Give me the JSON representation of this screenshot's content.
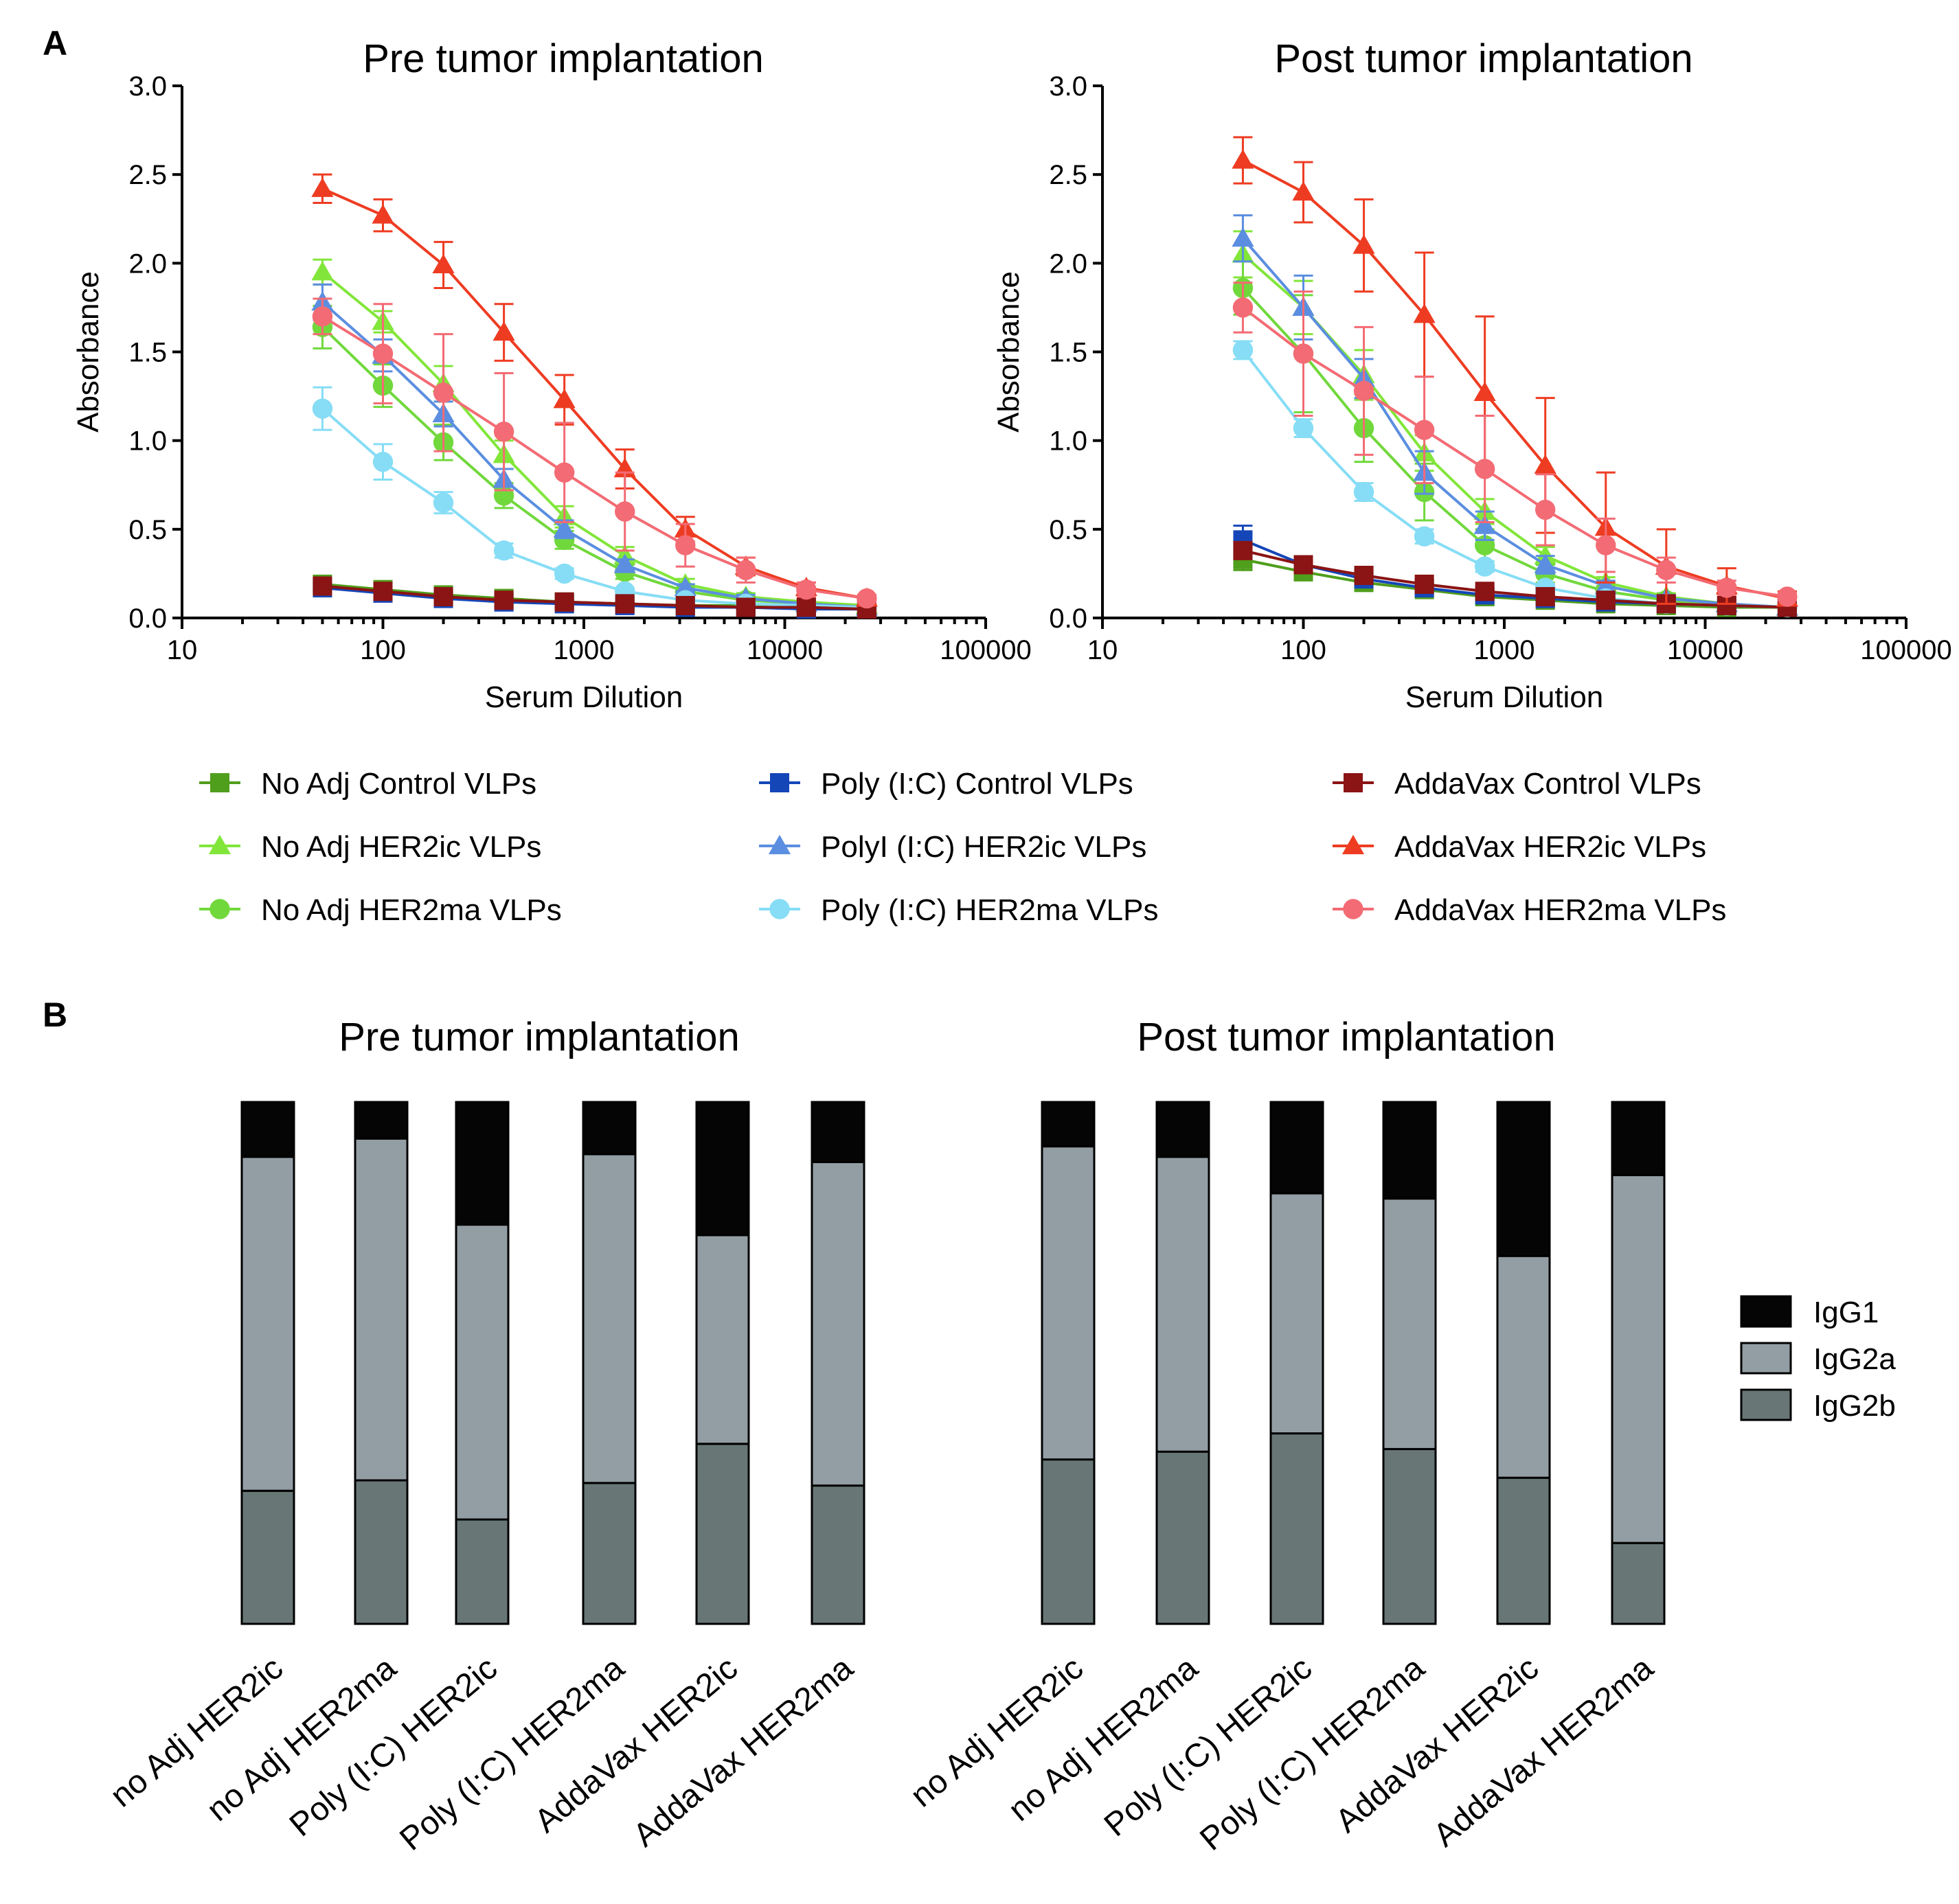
{
  "panel_labels": [
    "A",
    "B"
  ],
  "chart_data": [
    {
      "type": "line",
      "panel": "A",
      "title": "Pre tumor implantation",
      "xlabel": "Serum Dilution",
      "ylabel": "Absorbance",
      "xscale": "log",
      "xlim": [
        10,
        100000
      ],
      "ylim": [
        0,
        3.0
      ],
      "xticks": [
        "10",
        "100",
        "1000",
        "10000",
        "100000"
      ],
      "yticks": [
        "0.0",
        "0.5",
        "1.0",
        "1.5",
        "2.0",
        "2.5",
        "3.0"
      ],
      "x": [
        50,
        100,
        200,
        400,
        800,
        1600,
        3200,
        6400,
        12800,
        25600
      ],
      "series": [
        {
          "key": "noadj_ctrl",
          "values": [
            0.19,
            0.16,
            0.13,
            0.11,
            0.09,
            0.08,
            0.07,
            0.07,
            0.06,
            0.06
          ],
          "err": [
            0.03,
            0.02,
            0.02,
            0.02,
            0.01,
            0.01,
            0.01,
            0.01,
            0.01,
            0.01
          ]
        },
        {
          "key": "noadj_ic",
          "values": [
            1.95,
            1.67,
            1.32,
            0.92,
            0.57,
            0.35,
            0.19,
            0.12,
            0.09,
            0.07
          ],
          "err": [
            0.07,
            0.06,
            0.1,
            0.08,
            0.06,
            0.05,
            0.03,
            0.02,
            0.02,
            0.01
          ]
        },
        {
          "key": "noadj_ma",
          "values": [
            1.64,
            1.31,
            0.99,
            0.69,
            0.44,
            0.26,
            0.15,
            0.1,
            0.08,
            0.06
          ],
          "err": [
            0.12,
            0.12,
            0.1,
            0.07,
            0.05,
            0.04,
            0.02,
            0.02,
            0.01,
            0.01
          ]
        },
        {
          "key": "poly_ctrl",
          "values": [
            0.17,
            0.14,
            0.11,
            0.09,
            0.08,
            0.07,
            0.06,
            0.06,
            0.05,
            0.05
          ],
          "err": [
            0.02,
            0.02,
            0.01,
            0.01,
            0.01,
            0.01,
            0.01,
            0.01,
            0.01,
            0.01
          ]
        },
        {
          "key": "poly_ic",
          "values": [
            1.78,
            1.48,
            1.15,
            0.78,
            0.5,
            0.3,
            0.17,
            0.11,
            0.08,
            0.06
          ],
          "err": [
            0.1,
            0.09,
            0.07,
            0.06,
            0.05,
            0.03,
            0.02,
            0.02,
            0.01,
            0.01
          ]
        },
        {
          "key": "poly_ma",
          "values": [
            1.18,
            0.88,
            0.65,
            0.38,
            0.25,
            0.15,
            0.1,
            0.08,
            0.07,
            0.06
          ],
          "err": [
            0.12,
            0.1,
            0.06,
            0.04,
            0.03,
            0.02,
            0.02,
            0.01,
            0.01,
            0.01
          ]
        },
        {
          "key": "adda_ctrl",
          "values": [
            0.18,
            0.15,
            0.12,
            0.1,
            0.09,
            0.08,
            0.07,
            0.06,
            0.06,
            0.05
          ],
          "err": [
            0.02,
            0.02,
            0.02,
            0.01,
            0.01,
            0.01,
            0.01,
            0.01,
            0.01,
            0.01
          ]
        },
        {
          "key": "adda_ic",
          "values": [
            2.42,
            2.27,
            1.99,
            1.61,
            1.23,
            0.84,
            0.5,
            0.29,
            0.17,
            0.11
          ],
          "err": [
            0.08,
            0.09,
            0.13,
            0.16,
            0.14,
            0.11,
            0.07,
            0.05,
            0.03,
            0.02
          ]
        },
        {
          "key": "adda_ma",
          "values": [
            1.7,
            1.49,
            1.27,
            1.05,
            0.82,
            0.6,
            0.41,
            0.27,
            0.16,
            0.11
          ],
          "err": [
            0.1,
            0.28,
            0.33,
            0.33,
            0.28,
            0.22,
            0.12,
            0.07,
            0.04,
            0.02
          ]
        }
      ]
    },
    {
      "type": "line",
      "panel": "A",
      "title": "Post tumor implantation",
      "xlabel": "Serum Dilution",
      "ylabel": "Absorbance",
      "xscale": "log",
      "xlim": [
        10,
        100000
      ],
      "ylim": [
        0,
        3.0
      ],
      "xticks": [
        "10",
        "100",
        "1000",
        "10000",
        "100000"
      ],
      "yticks": [
        "0.0",
        "0.5",
        "1.0",
        "1.5",
        "2.0",
        "2.5",
        "3.0"
      ],
      "x": [
        50,
        100,
        200,
        400,
        800,
        1600,
        3200,
        6400,
        12800,
        25600
      ],
      "series": [
        {
          "key": "noadj_ctrl",
          "values": [
            0.33,
            0.26,
            0.2,
            0.16,
            0.12,
            0.1,
            0.08,
            0.07,
            0.06,
            0.06
          ],
          "err": [
            0.06,
            0.04,
            0.03,
            0.02,
            0.02,
            0.01,
            0.01,
            0.01,
            0.01,
            0.01
          ]
        },
        {
          "key": "noadj_ic",
          "values": [
            2.05,
            1.75,
            1.37,
            0.93,
            0.6,
            0.35,
            0.2,
            0.12,
            0.08,
            0.06
          ],
          "err": [
            0.13,
            0.15,
            0.14,
            0.1,
            0.07,
            0.05,
            0.03,
            0.02,
            0.01,
            0.01
          ]
        },
        {
          "key": "noadj_ma",
          "values": [
            1.86,
            1.49,
            1.07,
            0.71,
            0.41,
            0.25,
            0.15,
            0.1,
            0.07,
            0.06
          ],
          "err": [
            0.15,
            0.33,
            0.19,
            0.16,
            0.09,
            0.05,
            0.03,
            0.02,
            0.01,
            0.01
          ]
        },
        {
          "key": "poly_ctrl",
          "values": [
            0.44,
            0.3,
            0.22,
            0.17,
            0.13,
            0.11,
            0.09,
            0.08,
            0.07,
            0.06
          ],
          "err": [
            0.08,
            0.04,
            0.03,
            0.02,
            0.02,
            0.01,
            0.01,
            0.01,
            0.01,
            0.01
          ]
        },
        {
          "key": "poly_ic",
          "values": [
            2.14,
            1.75,
            1.35,
            0.82,
            0.52,
            0.3,
            0.18,
            0.11,
            0.08,
            0.06
          ],
          "err": [
            0.13,
            0.18,
            0.11,
            0.12,
            0.08,
            0.05,
            0.03,
            0.02,
            0.01,
            0.01
          ]
        },
        {
          "key": "poly_ma",
          "values": [
            1.51,
            1.07,
            0.71,
            0.46,
            0.29,
            0.17,
            0.11,
            0.08,
            0.07,
            0.06
          ],
          "err": [
            0.05,
            0.05,
            0.05,
            0.04,
            0.03,
            0.02,
            0.02,
            0.01,
            0.01,
            0.01
          ]
        },
        {
          "key": "adda_ctrl",
          "values": [
            0.38,
            0.3,
            0.24,
            0.19,
            0.15,
            0.12,
            0.1,
            0.08,
            0.07,
            0.06
          ],
          "err": [
            0.04,
            0.03,
            0.03,
            0.02,
            0.02,
            0.01,
            0.01,
            0.01,
            0.01,
            0.01
          ]
        },
        {
          "key": "adda_ic",
          "values": [
            2.58,
            2.4,
            2.1,
            1.71,
            1.27,
            0.86,
            0.51,
            0.29,
            0.18,
            0.11
          ],
          "err": [
            0.13,
            0.17,
            0.26,
            0.35,
            0.43,
            0.38,
            0.31,
            0.21,
            0.1,
            0.04
          ]
        },
        {
          "key": "adda_ma",
          "values": [
            1.75,
            1.49,
            1.28,
            1.06,
            0.84,
            0.61,
            0.41,
            0.27,
            0.17,
            0.12
          ],
          "err": [
            0.14,
            0.35,
            0.36,
            0.3,
            0.3,
            0.2,
            0.15,
            0.07,
            0.04,
            0.02
          ]
        }
      ]
    },
    {
      "type": "bar",
      "stacked": true,
      "panel": "B",
      "title": "Pre tumor implantation",
      "unit": "proportion",
      "categories": [
        "no Adj HER2ic",
        "no Adj HER2ma",
        "Poly (I:C) HER2ic",
        "Poly (I:C) HER2ma",
        "AddaVax HER2ic",
        "AddaVax HER2ma"
      ],
      "series": [
        {
          "key": "IgG2b",
          "values": [
            0.255,
            0.275,
            0.2,
            0.27,
            0.345,
            0.265
          ]
        },
        {
          "key": "IgG2a",
          "values": [
            0.64,
            0.655,
            0.565,
            0.63,
            0.4,
            0.62
          ]
        },
        {
          "key": "IgG1",
          "values": [
            0.105,
            0.07,
            0.235,
            0.1,
            0.255,
            0.115
          ]
        }
      ]
    },
    {
      "type": "bar",
      "stacked": true,
      "panel": "B",
      "title": "Post tumor implantation",
      "unit": "proportion",
      "categories": [
        "no Adj HER2ic",
        "no Adj HER2ma",
        "Poly (I:C) HER2ic",
        "Poly (I:C) HER2ma",
        "AddaVax HER2ic",
        "AddaVax HER2ma"
      ],
      "series": [
        {
          "key": "IgG2b",
          "values": [
            0.315,
            0.33,
            0.365,
            0.335,
            0.28,
            0.155
          ]
        },
        {
          "key": "IgG2a",
          "values": [
            0.6,
            0.565,
            0.46,
            0.48,
            0.425,
            0.705
          ]
        },
        {
          "key": "IgG1",
          "values": [
            0.085,
            0.105,
            0.175,
            0.185,
            0.295,
            0.14
          ]
        }
      ]
    }
  ],
  "line_legend": [
    {
      "key": "noadj_ctrl",
      "label": "No Adj Control VLPs",
      "color": "#4f9e1c",
      "marker": "square"
    },
    {
      "key": "noadj_ic",
      "label": "No Adj HER2ic VLPs",
      "color": "#82e63a",
      "marker": "triangle"
    },
    {
      "key": "noadj_ma",
      "label": "No Adj HER2ma VLPs",
      "color": "#71d83c",
      "marker": "circle"
    },
    {
      "key": "poly_ctrl",
      "label": "Poly (I:C) Control VLPs",
      "color": "#1446b8",
      "marker": "square"
    },
    {
      "key": "poly_ic",
      "label": "PolyI (I:C) HER2ic VLPs",
      "color": "#5b8ee0",
      "marker": "triangle"
    },
    {
      "key": "poly_ma",
      "label": "Poly (I:C) HER2ma VLPs",
      "color": "#86ddf5",
      "marker": "circle"
    },
    {
      "key": "adda_ctrl",
      "label": "AddaVax Control VLPs",
      "color": "#8b1414",
      "marker": "square"
    },
    {
      "key": "adda_ic",
      "label": "AddaVax HER2ic VLPs",
      "color": "#ee3c22",
      "marker": "triangle"
    },
    {
      "key": "adda_ma",
      "label": "AddaVax HER2ma VLPs",
      "color": "#f36b74",
      "marker": "circle"
    }
  ],
  "bar_legend": [
    {
      "key": "IgG1",
      "label": "IgG1",
      "color": "#050505"
    },
    {
      "key": "IgG2a",
      "label": "IgG2a",
      "color": "#939ea4"
    },
    {
      "key": "IgG2b",
      "label": "IgG2b",
      "color": "#687676"
    }
  ]
}
